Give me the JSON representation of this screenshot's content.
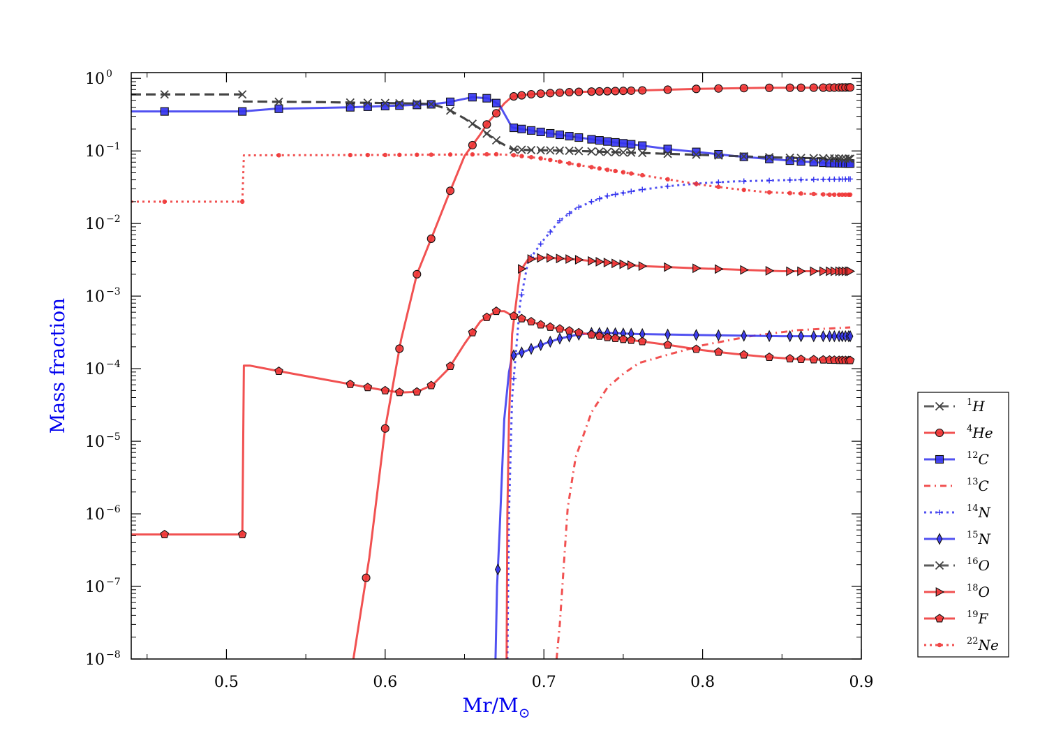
{
  "chart_data": {
    "type": "line",
    "xlabel": "Mr/M",
    "xlabel_symbol": "⊙",
    "ylabel": "Mass fraction",
    "xlim": [
      0.44,
      0.9
    ],
    "ylim": [
      1e-08,
      1.2
    ],
    "yscale": "log",
    "grid": false,
    "legend": "right",
    "x_ticks": [
      {
        "value": 0.5,
        "label": "0.5"
      },
      {
        "value": 0.6,
        "label": "0.6"
      },
      {
        "value": 0.7,
        "label": "0.7"
      },
      {
        "value": 0.8,
        "label": "0.8"
      },
      {
        "value": 0.9,
        "label": "0.9"
      }
    ],
    "y_ticks": [
      {
        "value": 1,
        "base": "10",
        "exp": "0"
      },
      {
        "value": 0.1,
        "base": "10",
        "exp": "−1"
      },
      {
        "value": 0.01,
        "base": "10",
        "exp": "−2"
      },
      {
        "value": 0.001,
        "base": "10",
        "exp": "−3"
      },
      {
        "value": 0.0001,
        "base": "10",
        "exp": "−4"
      },
      {
        "value": 1e-05,
        "base": "10",
        "exp": "−5"
      },
      {
        "value": 1e-06,
        "base": "10",
        "exp": "−6"
      },
      {
        "value": 1e-07,
        "base": "10",
        "exp": "−7"
      },
      {
        "value": 1e-08,
        "base": "10",
        "exp": "−8"
      }
    ],
    "series": [
      {
        "name": "1H",
        "sup": "1",
        "elem": "H",
        "color": "#404040",
        "dash": "14,7",
        "marker": "x",
        "x": [
          0.44,
          0.51,
          0.511,
          0.56,
          0.62,
          0.63,
          0.64,
          0.65,
          0.66,
          0.67,
          0.68,
          0.69,
          0.7,
          0.72,
          0.74,
          0.76,
          0.78,
          0.8,
          0.82,
          0.84,
          0.86,
          0.88,
          0.893
        ],
        "y": [
          0.6,
          0.6,
          0.48,
          0.47,
          0.45,
          0.44,
          0.37,
          0.28,
          0.2,
          0.14,
          0.105,
          0.103,
          0.102,
          0.1,
          0.097,
          0.094,
          0.091,
          0.088,
          0.085,
          0.082,
          0.08,
          0.079,
          0.078
        ],
        "marker_x": []
      },
      {
        "name": "4He",
        "sup": "4",
        "elem": "He",
        "color": "#ee3333",
        "dash": "",
        "marker": "circle",
        "x": [
          0.58,
          0.59,
          0.6,
          0.61,
          0.62,
          0.63,
          0.64,
          0.65,
          0.66,
          0.665,
          0.67,
          0.675,
          0.68,
          0.69,
          0.7,
          0.72,
          0.76,
          0.8,
          0.84,
          0.88,
          0.893
        ],
        "y": [
          1e-08,
          2.5e-07,
          1.5e-05,
          0.00025,
          0.002,
          0.007,
          0.025,
          0.085,
          0.17,
          0.25,
          0.33,
          0.45,
          0.56,
          0.6,
          0.62,
          0.65,
          0.68,
          0.72,
          0.74,
          0.745,
          0.75
        ],
        "marker_x": [
          0.588,
          0.6,
          0.609,
          0.62,
          0.629,
          0.641,
          0.655,
          0.664,
          0.67,
          0.681,
          0.686,
          0.692,
          0.698,
          0.704,
          0.71,
          0.716,
          0.722,
          0.73,
          0.735,
          0.74,
          0.745,
          0.75,
          0.755,
          0.762,
          0.778,
          0.796,
          0.81,
          0.826,
          0.842,
          0.855,
          0.862,
          0.87,
          0.876,
          0.88,
          0.883,
          0.886,
          0.888,
          0.89,
          0.892,
          0.893
        ]
      },
      {
        "name": "12C",
        "sup": "12",
        "elem": "C",
        "color": "#3333ee",
        "dash": "",
        "marker": "square",
        "x": [
          0.44,
          0.51,
          0.53,
          0.58,
          0.62,
          0.63,
          0.64,
          0.655,
          0.665,
          0.672,
          0.68,
          0.7,
          0.72,
          0.74,
          0.76,
          0.78,
          0.8,
          0.82,
          0.84,
          0.86,
          0.88,
          0.893
        ],
        "y": [
          0.35,
          0.35,
          0.38,
          0.4,
          0.43,
          0.44,
          0.47,
          0.55,
          0.53,
          0.43,
          0.21,
          0.18,
          0.155,
          0.135,
          0.12,
          0.105,
          0.095,
          0.085,
          0.078,
          0.072,
          0.068,
          0.067
        ],
        "marker_x": [
          0.461,
          0.51,
          0.533,
          0.578,
          0.589,
          0.6,
          0.609,
          0.62,
          0.629,
          0.641,
          0.655,
          0.664,
          0.67,
          0.681,
          0.686,
          0.692,
          0.698,
          0.704,
          0.71,
          0.716,
          0.722,
          0.73,
          0.735,
          0.74,
          0.745,
          0.75,
          0.755,
          0.762,
          0.778,
          0.796,
          0.81,
          0.826,
          0.842,
          0.855,
          0.862,
          0.87,
          0.876,
          0.88,
          0.883,
          0.886,
          0.888,
          0.89,
          0.892,
          0.893
        ]
      },
      {
        "name": "13C",
        "sup": "13",
        "elem": "C",
        "color": "#ee3333",
        "dash": "9,6,2,6",
        "marker": "none",
        "x": [
          0.708,
          0.71,
          0.715,
          0.72,
          0.73,
          0.74,
          0.75,
          0.76,
          0.78,
          0.8,
          0.83,
          0.86,
          0.893
        ],
        "y": [
          1e-08,
          3e-08,
          1.2e-06,
          6e-06,
          2.5e-05,
          5.5e-05,
          8.5e-05,
          0.00012,
          0.00016,
          0.00021,
          0.00028,
          0.00034,
          0.00037
        ],
        "marker_x": []
      },
      {
        "name": "14N",
        "sup": "14",
        "elem": "N",
        "color": "#3333ee",
        "dash": "3,5",
        "marker": "plus",
        "x": [
          0.677,
          0.678,
          0.68,
          0.685,
          0.69,
          0.7,
          0.71,
          0.72,
          0.73,
          0.74,
          0.76,
          0.78,
          0.8,
          0.82,
          0.84,
          0.86,
          0.893
        ],
        "y": [
          1e-08,
          1e-06,
          4e-05,
          0.0008,
          0.003,
          0.006,
          0.011,
          0.016,
          0.02,
          0.024,
          0.029,
          0.033,
          0.036,
          0.038,
          0.039,
          0.04,
          0.041
        ],
        "marker_x": [
          0.681,
          0.686,
          0.692,
          0.698,
          0.704,
          0.71,
          0.716,
          0.722,
          0.73,
          0.735,
          0.74,
          0.745,
          0.75,
          0.755,
          0.762,
          0.778,
          0.796,
          0.81,
          0.826,
          0.842,
          0.855,
          0.862,
          0.87,
          0.876,
          0.88,
          0.883,
          0.886,
          0.888,
          0.89,
          0.892,
          0.893
        ]
      },
      {
        "name": "15N",
        "sup": "15",
        "elem": "N",
        "color": "#3333ee",
        "dash": "",
        "marker": "diamond",
        "x": [
          0.6695,
          0.6705,
          0.672,
          0.675,
          0.678,
          0.68,
          0.69,
          0.7,
          0.71,
          0.72,
          0.73,
          0.74,
          0.76,
          0.8,
          0.85,
          0.893
        ],
        "y": [
          1e-08,
          1e-07,
          5e-07,
          2e-05,
          9e-05,
          0.00015,
          0.00018,
          0.00022,
          0.00026,
          0.00029,
          0.00031,
          0.00031,
          0.0003,
          0.00029,
          0.00028,
          0.00028
        ],
        "marker_x": [
          0.671,
          0.681,
          0.686,
          0.692,
          0.698,
          0.704,
          0.71,
          0.716,
          0.722,
          0.73,
          0.735,
          0.74,
          0.745,
          0.75,
          0.755,
          0.762,
          0.778,
          0.796,
          0.81,
          0.826,
          0.842,
          0.855,
          0.862,
          0.87,
          0.876,
          0.88,
          0.883,
          0.886,
          0.888,
          0.89,
          0.892,
          0.893
        ]
      },
      {
        "name": "16O",
        "sup": "16",
        "elem": "O",
        "color": "#404040",
        "dash": "14,7",
        "marker": "x",
        "x": [
          0.44,
          0.51,
          0.511,
          0.56,
          0.62,
          0.63,
          0.64,
          0.65,
          0.66,
          0.67,
          0.68,
          0.69,
          0.7,
          0.72,
          0.74,
          0.76,
          0.78,
          0.8,
          0.82,
          0.84,
          0.86,
          0.88,
          0.893
        ],
        "y": [
          0.6,
          0.6,
          0.48,
          0.47,
          0.45,
          0.44,
          0.37,
          0.28,
          0.2,
          0.14,
          0.105,
          0.103,
          0.102,
          0.1,
          0.097,
          0.094,
          0.091,
          0.088,
          0.085,
          0.082,
          0.08,
          0.079,
          0.078
        ],
        "marker_x": [
          0.461,
          0.51,
          0.533,
          0.578,
          0.589,
          0.6,
          0.609,
          0.62,
          0.629,
          0.641,
          0.655,
          0.664,
          0.67,
          0.681,
          0.686,
          0.692,
          0.698,
          0.704,
          0.71,
          0.716,
          0.722,
          0.73,
          0.735,
          0.74,
          0.745,
          0.75,
          0.755,
          0.762,
          0.778,
          0.796,
          0.81,
          0.826,
          0.842,
          0.855,
          0.862,
          0.87,
          0.876,
          0.88,
          0.883,
          0.886,
          0.888,
          0.89,
          0.892,
          0.893
        ]
      },
      {
        "name": "18O",
        "sup": "18",
        "elem": "O",
        "color": "#ee3333",
        "dash": "",
        "marker": "triangle",
        "x": [
          0.6765,
          0.677,
          0.678,
          0.68,
          0.685,
          0.69,
          0.7,
          0.72,
          0.74,
          0.76,
          0.8,
          0.85,
          0.893
        ],
        "y": [
          1e-08,
          1e-06,
          2e-05,
          0.0003,
          0.0022,
          0.0032,
          0.0034,
          0.0032,
          0.0029,
          0.0026,
          0.0024,
          0.0022,
          0.0022
        ],
        "marker_x": [
          0.686,
          0.692,
          0.698,
          0.704,
          0.71,
          0.716,
          0.722,
          0.73,
          0.735,
          0.74,
          0.745,
          0.75,
          0.755,
          0.762,
          0.778,
          0.796,
          0.81,
          0.826,
          0.842,
          0.855,
          0.862,
          0.87,
          0.876,
          0.88,
          0.883,
          0.886,
          0.888,
          0.89,
          0.892,
          0.893
        ]
      },
      {
        "name": "19F",
        "sup": "19",
        "elem": "F",
        "color": "#ee3333",
        "dash": "",
        "marker": "pentagon",
        "x": [
          0.44,
          0.51,
          0.511,
          0.515,
          0.53,
          0.56,
          0.58,
          0.6,
          0.61,
          0.62,
          0.63,
          0.64,
          0.65,
          0.66,
          0.67,
          0.675,
          0.68,
          0.69,
          0.7,
          0.72,
          0.74,
          0.76,
          0.78,
          0.8,
          0.82,
          0.84,
          0.86,
          0.893
        ],
        "y": [
          5.2e-07,
          5.2e-07,
          0.00011,
          0.00011,
          9.5e-05,
          7.2e-05,
          6e-05,
          5e-05,
          4.7e-05,
          4.8e-05,
          6e-05,
          0.0001,
          0.00022,
          0.00045,
          0.00062,
          0.00062,
          0.00054,
          0.00046,
          0.00039,
          0.00032,
          0.00027,
          0.00024,
          0.00021,
          0.00018,
          0.00016,
          0.000145,
          0.000135,
          0.00013
        ],
        "marker_x": [
          0.461,
          0.51,
          0.533,
          0.578,
          0.589,
          0.6,
          0.609,
          0.62,
          0.629,
          0.641,
          0.655,
          0.664,
          0.67,
          0.681,
          0.686,
          0.692,
          0.698,
          0.704,
          0.71,
          0.716,
          0.722,
          0.73,
          0.735,
          0.74,
          0.745,
          0.75,
          0.755,
          0.762,
          0.778,
          0.796,
          0.81,
          0.826,
          0.842,
          0.855,
          0.862,
          0.87,
          0.876,
          0.88,
          0.883,
          0.886,
          0.888,
          0.89,
          0.892,
          0.893
        ]
      },
      {
        "name": "22Ne",
        "sup": "22",
        "elem": "Ne",
        "color": "#ee3333",
        "dash": "3,5",
        "marker": "dot",
        "x": [
          0.44,
          0.51,
          0.511,
          0.6,
          0.67,
          0.68,
          0.7,
          0.72,
          0.74,
          0.76,
          0.78,
          0.8,
          0.82,
          0.84,
          0.86,
          0.88,
          0.893
        ],
        "y": [
          0.02,
          0.02,
          0.087,
          0.088,
          0.09,
          0.088,
          0.078,
          0.065,
          0.055,
          0.047,
          0.04,
          0.034,
          0.03,
          0.027,
          0.026,
          0.025,
          0.025
        ],
        "marker_x": [
          0.461,
          0.51,
          0.533,
          0.578,
          0.589,
          0.6,
          0.609,
          0.62,
          0.629,
          0.641,
          0.655,
          0.664,
          0.67,
          0.681,
          0.686,
          0.692,
          0.698,
          0.704,
          0.71,
          0.716,
          0.722,
          0.73,
          0.735,
          0.74,
          0.745,
          0.75,
          0.755,
          0.762,
          0.778,
          0.796,
          0.81,
          0.826,
          0.842,
          0.855,
          0.862,
          0.87,
          0.876,
          0.88,
          0.883,
          0.886,
          0.888,
          0.89,
          0.892,
          0.893
        ]
      }
    ]
  }
}
